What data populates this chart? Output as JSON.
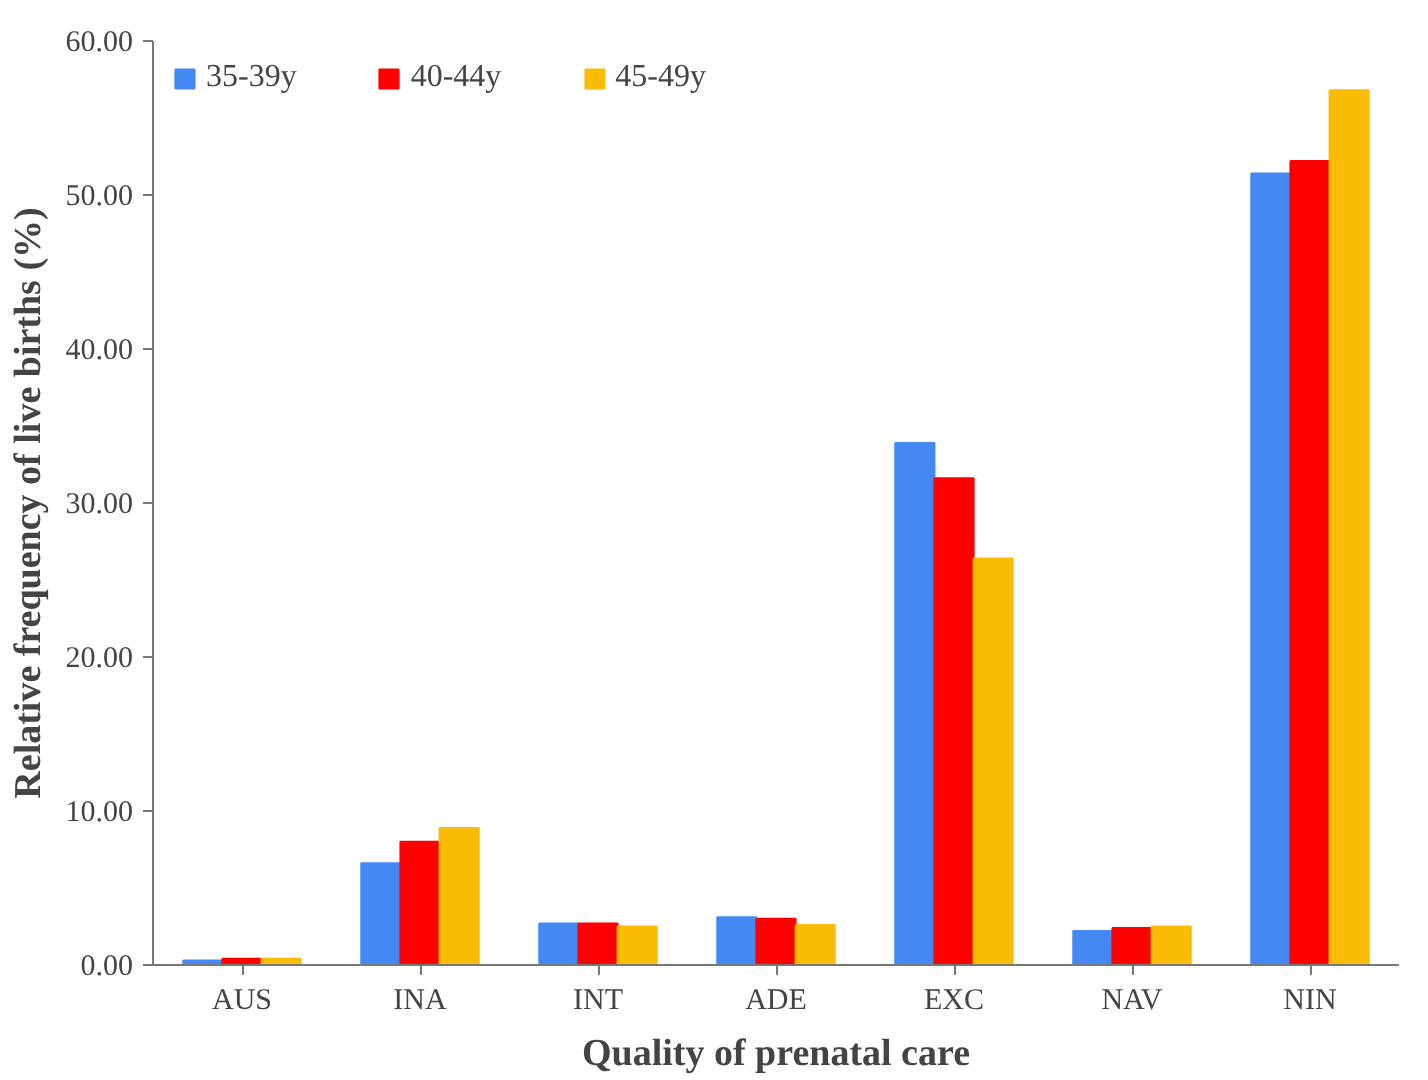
{
  "chart_data": {
    "type": "bar",
    "xlabel": "Quality of prenatal care",
    "ylabel": "Relative frequency of live births (%)",
    "categories": [
      "AUS",
      "INA",
      "INT",
      "ADE",
      "EXC",
      "NAV",
      "NIN"
    ],
    "series": [
      {
        "name": "35-39y",
        "color": "#4488f4",
        "values": [
          0.3,
          6.6,
          2.7,
          3.1,
          33.9,
          2.2,
          51.4
        ]
      },
      {
        "name": "40-44y",
        "color": "#ff0000",
        "values": [
          0.4,
          8.0,
          2.7,
          3.0,
          31.6,
          2.4,
          52.2
        ]
      },
      {
        "name": "45-49y",
        "color": "#fbbc05",
        "values": [
          0.4,
          8.9,
          2.5,
          2.6,
          26.4,
          2.5,
          56.8
        ]
      }
    ],
    "ylim": [
      0,
      60
    ],
    "yticks": [
      {
        "value": 0,
        "label": "0.00"
      },
      {
        "value": 10,
        "label": "10.00"
      },
      {
        "value": 20,
        "label": "20.00"
      },
      {
        "value": 30,
        "label": "30.00"
      },
      {
        "value": 40,
        "label": "40.00"
      },
      {
        "value": 50,
        "label": "50.00"
      },
      {
        "value": 60,
        "label": "60.00"
      }
    ],
    "grid": false,
    "legend": "top left"
  }
}
